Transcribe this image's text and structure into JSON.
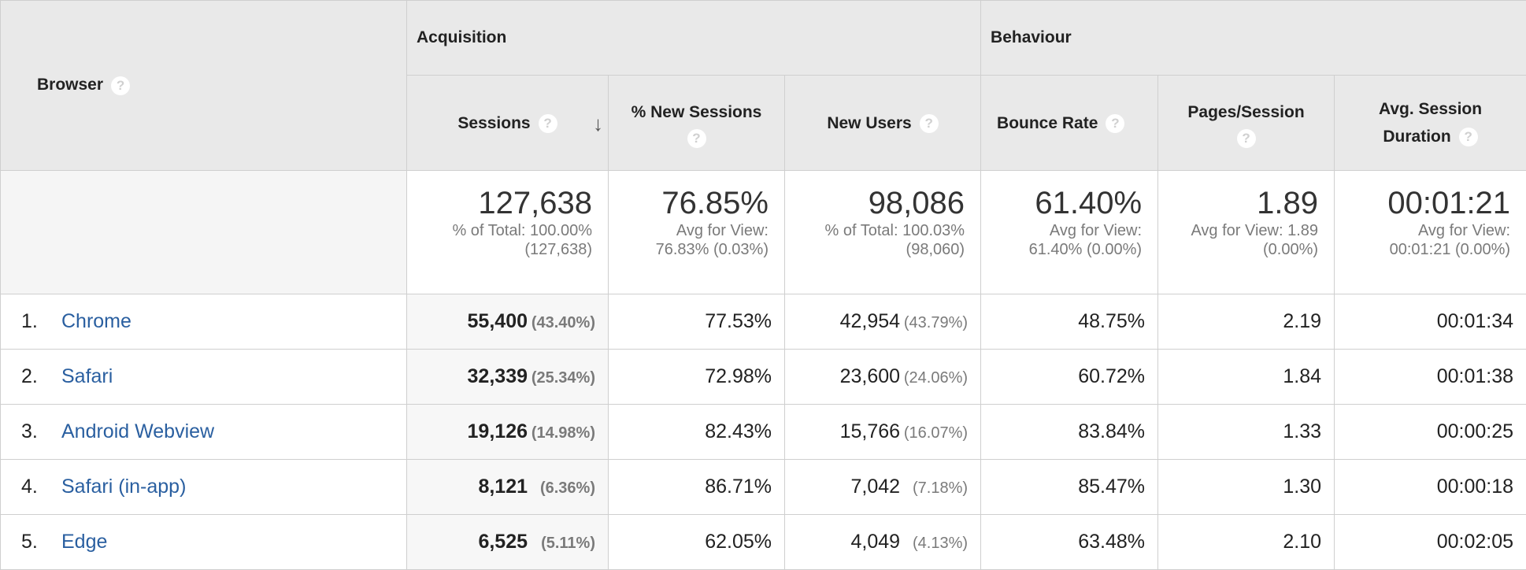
{
  "headers": {
    "browser": "Browser",
    "acquisition": "Acquisition",
    "behaviour": "Behaviour",
    "sessions": "Sessions",
    "new_sessions_pct": "% New Sessions",
    "new_users": "New Users",
    "bounce_rate": "Bounce Rate",
    "pages_session": "Pages/Session",
    "avg_duration_line1": "Avg. Session",
    "avg_duration_line2": "Duration",
    "help_glyph": "?",
    "sort_glyph": "↓"
  },
  "summary": {
    "sessions": {
      "value": "127,638",
      "sub1": "% of Total: 100.00%",
      "sub2": "(127,638)"
    },
    "new_sessions_pct": {
      "value": "76.85%",
      "sub1": "Avg for View:",
      "sub2": "76.83% (0.03%)"
    },
    "new_users": {
      "value": "98,086",
      "sub1": "% of Total: 100.03%",
      "sub2": "(98,060)"
    },
    "bounce_rate": {
      "value": "61.40%",
      "sub1": "Avg for View:",
      "sub2": "61.40% (0.00%)"
    },
    "pages_session": {
      "value": "1.89",
      "sub1": "Avg for View: 1.89",
      "sub2": "(0.00%)"
    },
    "avg_duration": {
      "value": "00:01:21",
      "sub1": "Avg for View:",
      "sub2": "00:01:21 (0.00%)"
    }
  },
  "rows": [
    {
      "num": "1.",
      "browser": "Chrome",
      "sessions": "55,400",
      "sessions_pct": "(43.40%)",
      "new_sessions_pct": "77.53%",
      "new_users": "42,954",
      "new_users_pct": "(43.79%)",
      "bounce_rate": "48.75%",
      "pages_session": "2.19",
      "avg_duration": "00:01:34"
    },
    {
      "num": "2.",
      "browser": "Safari",
      "sessions": "32,339",
      "sessions_pct": "(25.34%)",
      "new_sessions_pct": "72.98%",
      "new_users": "23,600",
      "new_users_pct": "(24.06%)",
      "bounce_rate": "60.72%",
      "pages_session": "1.84",
      "avg_duration": "00:01:38"
    },
    {
      "num": "3.",
      "browser": "Android Webview",
      "sessions": "19,126",
      "sessions_pct": "(14.98%)",
      "new_sessions_pct": "82.43%",
      "new_users": "15,766",
      "new_users_pct": "(16.07%)",
      "bounce_rate": "83.84%",
      "pages_session": "1.33",
      "avg_duration": "00:00:25"
    },
    {
      "num": "4.",
      "browser": "Safari (in-app)",
      "sessions": "8,121",
      "sessions_pct": "(6.36%)",
      "new_sessions_pct": "86.71%",
      "new_users": "7,042",
      "new_users_pct": "(7.18%)",
      "bounce_rate": "85.47%",
      "pages_session": "1.30",
      "avg_duration": "00:00:18"
    },
    {
      "num": "5.",
      "browser": "Edge",
      "sessions": "6,525",
      "sessions_pct": "(5.11%)",
      "new_sessions_pct": "62.05%",
      "new_users": "4,049",
      "new_users_pct": "(4.13%)",
      "bounce_rate": "63.48%",
      "pages_session": "2.10",
      "avg_duration": "00:02:05"
    }
  ]
}
